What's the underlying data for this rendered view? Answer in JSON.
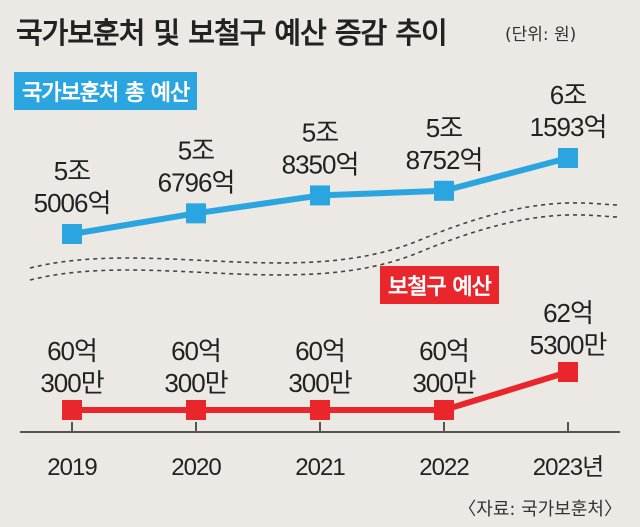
{
  "header": {
    "title": "국가보훈처 및 보철구 예산 증감 추이",
    "unit": "(단위: 원)"
  },
  "source": "〈자료: 국가보훈처〉",
  "colors": {
    "blue": "#2aa5e0",
    "red": "#e8262b",
    "background": "#ece9e4"
  },
  "chart_data": {
    "type": "line",
    "categories": [
      "2019",
      "2020",
      "2021",
      "2022",
      "2023년"
    ],
    "series": [
      {
        "name": "국가보훈처 총 예산",
        "labels": [
          [
            "5조",
            "5006억"
          ],
          [
            "5조",
            "6796억"
          ],
          [
            "5조",
            "8350억"
          ],
          [
            "5조",
            "8752억"
          ],
          [
            "6조",
            "1593억"
          ]
        ],
        "values_won": [
          5500600000000,
          5679600000000,
          5835000000000,
          5875200000000,
          6159300000000
        ]
      },
      {
        "name": "보철구 예산",
        "labels": [
          [
            "60억",
            "300만"
          ],
          [
            "60억",
            "300만"
          ],
          [
            "60억",
            "300만"
          ],
          [
            "60억",
            "300만"
          ],
          [
            "62억",
            "5300만"
          ]
        ],
        "values_won": [
          6003000000,
          6003000000,
          6003000000,
          6003000000,
          6253000000
        ]
      }
    ]
  }
}
